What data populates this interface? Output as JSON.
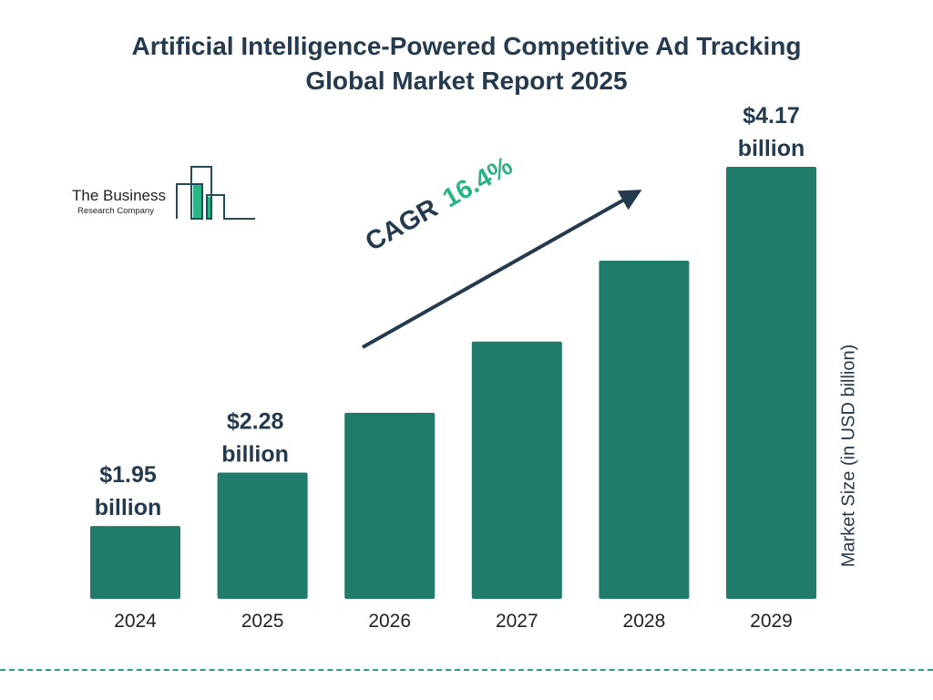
{
  "chart_data": {
    "type": "bar",
    "title": "Artificial Intelligence-Powered Competitive Ad Tracking Global Market Report 2025",
    "title_lines": [
      "Artificial Intelligence-Powered Competitive Ad Tracking",
      "Global Market Report 2025"
    ],
    "categories": [
      "2024",
      "2025",
      "2026",
      "2027",
      "2028",
      "2029"
    ],
    "values": [
      1.95,
      2.28,
      2.65,
      3.09,
      3.59,
      4.17
    ],
    "data_labels": [
      {
        "index": 0,
        "value": "$1.95",
        "unit": "billion"
      },
      {
        "index": 1,
        "value": "$2.28",
        "unit": "billion"
      },
      {
        "index": 5,
        "value": "$4.17",
        "unit": "billion"
      }
    ],
    "xlabel": "",
    "ylabel": "Market Size (in USD billion)",
    "ylim": [
      1.5,
      4.17
    ],
    "grid": false,
    "annotation": {
      "label": "CAGR",
      "value": "16.4%"
    },
    "colors": {
      "bar": "#217b6b",
      "text": "#243a4f",
      "accent": "#2bb484"
    }
  },
  "logo": {
    "line1": "The Business",
    "line2": "Research Company"
  }
}
